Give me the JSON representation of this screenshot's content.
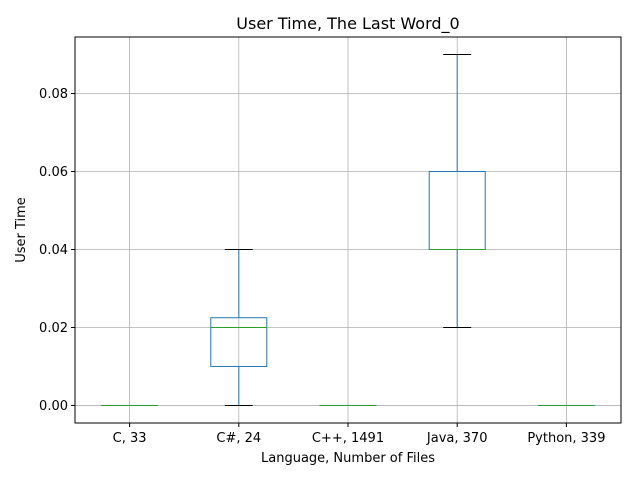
{
  "chart_data": {
    "type": "box",
    "title": "User Time, The Last Word_0",
    "xlabel": "Language, Number of Files",
    "ylabel": "User Time",
    "categories": [
      "C, 33",
      "C#, 24",
      "C++, 1491",
      "Java, 370",
      "Python, 339"
    ],
    "boxes": [
      {
        "whisker_low": 0.0,
        "q1": 0.0,
        "median": 0.0,
        "q3": 0.0,
        "whisker_high": 0.0
      },
      {
        "whisker_low": 0.0,
        "q1": 0.01,
        "median": 0.02,
        "q3": 0.0225,
        "whisker_high": 0.04
      },
      {
        "whisker_low": 0.0,
        "q1": 0.0,
        "median": 0.0,
        "q3": 0.0,
        "whisker_high": 0.0
      },
      {
        "whisker_low": 0.02,
        "q1": 0.04,
        "median": 0.04,
        "q3": 0.06,
        "whisker_high": 0.09
      },
      {
        "whisker_low": 0.0,
        "q1": 0.0,
        "median": 0.0,
        "q3": 0.0,
        "whisker_high": 0.0
      }
    ],
    "ylim": [
      -0.0045,
      0.0945
    ],
    "yticks": [
      0.0,
      0.02,
      0.04,
      0.06,
      0.08
    ],
    "ytick_labels": [
      "0.00",
      "0.02",
      "0.04",
      "0.06",
      "0.08"
    ],
    "grid": true,
    "colors": {
      "box": "#1f77b4",
      "median": "#2ca02c",
      "cap": "#000000",
      "grid": "#b0b0b0"
    }
  }
}
